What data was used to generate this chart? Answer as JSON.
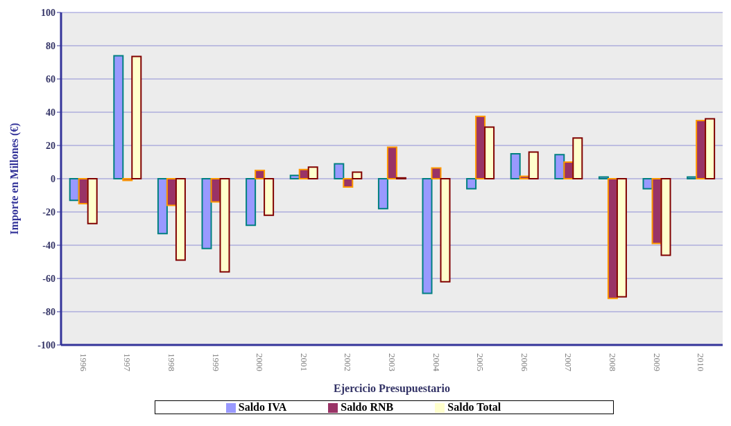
{
  "chart_data": {
    "type": "bar",
    "xlabel": "Ejercicio Presupuestario",
    "ylabel": "Importe en Millones (€)",
    "categories": [
      "1996",
      "1997",
      "1998",
      "1999",
      "2000",
      "2001",
      "2002",
      "2003",
      "2004",
      "2005",
      "2006",
      "2007",
      "2008",
      "2009",
      "2010"
    ],
    "series": [
      {
        "name": "Saldo IVA",
        "color": "#9999ff",
        "values": [
          -13,
          74,
          -33,
          -42,
          -28,
          2,
          9,
          -18,
          -69,
          -6,
          15,
          14.5,
          1,
          -6,
          1
        ]
      },
      {
        "name": "Saldo RNB",
        "color": "#993366",
        "values": [
          -15,
          -1,
          -16,
          -14,
          5,
          5.5,
          -5,
          19,
          6.5,
          37.5,
          1.5,
          10,
          -72,
          -39,
          35
        ]
      },
      {
        "name": "Saldo Total",
        "color": "#ffffcc",
        "values": [
          -27,
          73.5,
          -49,
          -56,
          -22,
          7,
          4,
          0.5,
          -62,
          31,
          16,
          24.5,
          -71,
          -46,
          36
        ]
      }
    ],
    "ylim": [
      -100,
      100
    ],
    "yticks": [
      -100,
      -80,
      -60,
      -40,
      -20,
      0,
      20,
      40,
      60,
      80,
      100
    ],
    "grid": "y",
    "legend": "bottom"
  }
}
